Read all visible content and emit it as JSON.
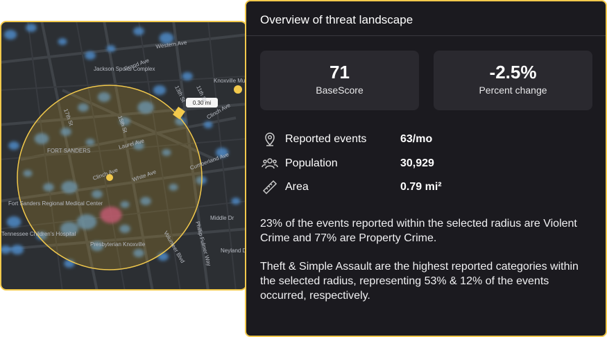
{
  "map": {
    "labels": [
      "Western Ave",
      "Grand Ave",
      "Jackson Sports Complex",
      "Knoxville Museum",
      "FORT SANDERS",
      "Clinch Ave",
      "Laurel Ave",
      "White Ave",
      "Cumberland Ave",
      "Clinch Ave",
      "Fort Sanders Regional Medical Center",
      "Tennessee Children's Hospital",
      "Middle Dr",
      "Neyland Dr",
      "Volunteer Blvd",
      "Phillip Fulmer Way",
      "Presbyterian Knoxville",
      "17th St",
      "15th St",
      "13th St",
      "11th St"
    ],
    "scale": "0.30 mi"
  },
  "panel": {
    "title": "Overview of threat landscape",
    "cards": [
      {
        "value": "71",
        "label": "BaseScore"
      },
      {
        "value": "-2.5%",
        "label": "Percent change"
      }
    ],
    "stats": [
      {
        "label": "Reported events",
        "value": "63/mo"
      },
      {
        "label": "Population",
        "value": "30,929"
      },
      {
        "label": "Area",
        "value": "0.79 mi²"
      }
    ],
    "paragraphs": [
      "23% of the events reported within the selected radius are Violent Crime and 77% are Property Crime.",
      "Theft & Simple Assault are the highest reported categories within the selected radius, representing 53% & 12% of the events occurred, respectively."
    ]
  }
}
